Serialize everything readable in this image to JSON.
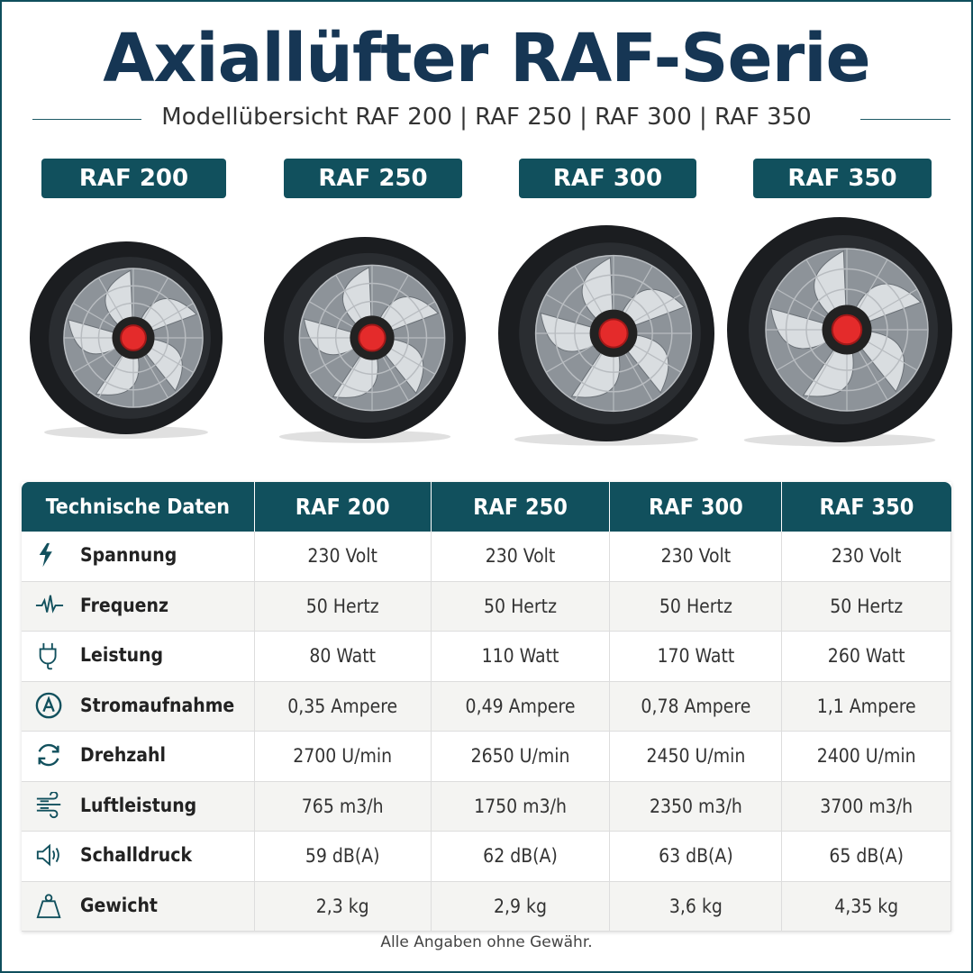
{
  "header": {
    "title": "Axiallüfter RAF-Serie",
    "subtitle": "Modellübersicht RAF 200 | RAF 250 | RAF 300 | RAF 350"
  },
  "models": [
    "RAF 200",
    "RAF 250",
    "RAF 300",
    "RAF 350"
  ],
  "table": {
    "header": [
      "Technische Daten",
      "RAF 200",
      "RAF 250",
      "RAF 300",
      "RAF 350"
    ],
    "rows": [
      [
        "Spannung",
        "230 Volt",
        "230 Volt",
        "230 Volt",
        "230 Volt"
      ],
      [
        "Frequenz",
        "50 Hertz",
        "50 Hertz",
        "50 Hertz",
        "50 Hertz"
      ],
      [
        "Leistung",
        "80 Watt",
        "110 Watt",
        "170 Watt",
        "260 Watt"
      ],
      [
        "Stromaufnahme",
        "0,35 Ampere",
        "0,49 Ampere",
        "0,78 Ampere",
        "1,1 Ampere"
      ],
      [
        "Drehzahl",
        "2700 U/min",
        "2650 U/min",
        "2450 U/min",
        "2400 U/min"
      ],
      [
        "Luftleistung",
        "765 m3/h",
        "1750 m3/h",
        "2350 m3/h",
        "3700 m3/h"
      ],
      [
        "Schalldruck",
        "59 dB(A)",
        "62 dB(A)",
        "63 dB(A)",
        "65 dB(A)"
      ],
      [
        "Gewicht",
        "2,3 kg",
        "2,9 kg",
        "3,6 kg",
        "4,35 kg"
      ]
    ]
  },
  "footer": "Alle Angaben ohne Gewähr."
}
